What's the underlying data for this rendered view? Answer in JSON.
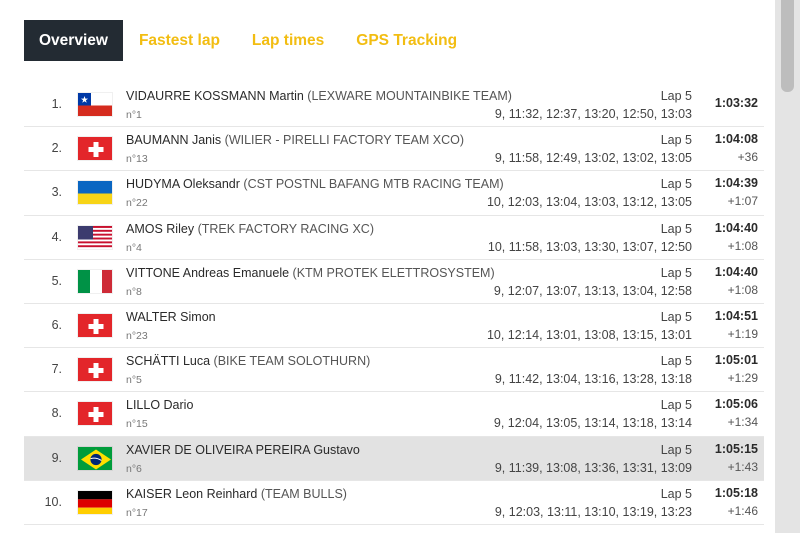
{
  "tabs": [
    {
      "label": "Overview",
      "active": true
    },
    {
      "label": "Fastest lap",
      "active": false
    },
    {
      "label": "Lap times",
      "active": false
    },
    {
      "label": "GPS Tracking",
      "active": false
    }
  ],
  "colors": {
    "accent": "#f2bd12",
    "active_tab_bg": "#232b33",
    "highlight_row_bg": "#e2e2e2"
  },
  "results": [
    {
      "position": "1.",
      "flag": "chile-flag",
      "name": "VIDAURRE KOSSMANN Martin",
      "team": "(LEXWARE MOUNTAINBIKE TEAM)",
      "bib": "n°1",
      "lap": "Lap 5",
      "splits": "9, 11:32, 12:37, 13:20, 12:50, 13:03",
      "time": "1:03:32",
      "gap": ""
    },
    {
      "position": "2.",
      "flag": "switzerland-flag",
      "name": "BAUMANN Janis",
      "team": "(WILIER - PIRELLI FACTORY TEAM XCO)",
      "bib": "n°13",
      "lap": "Lap 5",
      "splits": "9, 11:58, 12:49, 13:02, 13:02, 13:05",
      "time": "1:04:08",
      "gap": "+36"
    },
    {
      "position": "3.",
      "flag": "ukraine-flag",
      "name": "HUDYMA Oleksandr",
      "team": "(CST POSTNL BAFANG MTB RACING TEAM)",
      "bib": "n°22",
      "lap": "Lap 5",
      "splits": "10, 12:03, 13:04, 13:03, 13:12, 13:05",
      "time": "1:04:39",
      "gap": "+1:07"
    },
    {
      "position": "4.",
      "flag": "usa-flag",
      "name": "AMOS Riley",
      "team": "(TREK FACTORY RACING XC)",
      "bib": "n°4",
      "lap": "Lap 5",
      "splits": "10, 11:58, 13:03, 13:30, 13:07, 12:50",
      "time": "1:04:40",
      "gap": "+1:08"
    },
    {
      "position": "5.",
      "flag": "italy-flag",
      "name": "VITTONE Andreas Emanuele",
      "team": "(KTM PROTEK ELETTROSYSTEM)",
      "bib": "n°8",
      "lap": "Lap 5",
      "splits": "9, 12:07, 13:07, 13:13, 13:04, 12:58",
      "time": "1:04:40",
      "gap": "+1:08"
    },
    {
      "position": "6.",
      "flag": "switzerland-flag",
      "name": "WALTER Simon",
      "team": "",
      "bib": "n°23",
      "lap": "Lap 5",
      "splits": "10, 12:14, 13:01, 13:08, 13:15, 13:01",
      "time": "1:04:51",
      "gap": "+1:19"
    },
    {
      "position": "7.",
      "flag": "switzerland-flag",
      "name": "SCHÄTTI Luca",
      "team": "(BIKE TEAM SOLOTHURN)",
      "bib": "n°5",
      "lap": "Lap 5",
      "splits": "9, 11:42, 13:04, 13:16, 13:28, 13:18",
      "time": "1:05:01",
      "gap": "+1:29"
    },
    {
      "position": "8.",
      "flag": "switzerland-flag",
      "name": "LILLO Dario",
      "team": "",
      "bib": "n°15",
      "lap": "Lap 5",
      "splits": "9, 12:04, 13:05, 13:14, 13:18, 13:14",
      "time": "1:05:06",
      "gap": "+1:34"
    },
    {
      "position": "9.",
      "flag": "brazil-flag",
      "name": "XAVIER DE OLIVEIRA PEREIRA Gustavo",
      "team": "",
      "bib": "n°6",
      "lap": "Lap 5",
      "splits": "9, 11:39, 13:08, 13:36, 13:31, 13:09",
      "time": "1:05:15",
      "gap": "+1:43",
      "highlight": true
    },
    {
      "position": "10.",
      "flag": "germany-flag",
      "name": "KAISER Leon Reinhard",
      "team": "(TEAM BULLS)",
      "bib": "n°17",
      "lap": "Lap 5",
      "splits": "9, 12:03, 13:11, 13:10, 13:19, 13:23",
      "time": "1:05:18",
      "gap": "+1:46"
    }
  ]
}
